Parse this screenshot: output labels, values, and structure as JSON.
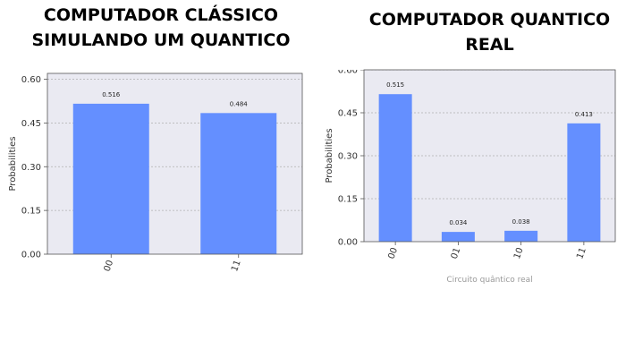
{
  "headings": {
    "left": "COMPUTADOR CLÁSSICO\nSIMULANDO UM QUANTICO",
    "right": "COMPUTADOR QUANTICO\nREAL"
  },
  "colors": {
    "bar": "#648fff",
    "plot_background": "#eaeaf2",
    "grid": "#b0b0b0"
  },
  "chart_data": [
    {
      "type": "bar",
      "title": "COMPUTADOR CLÁSSICO SIMULANDO UM QUANTICO",
      "categories": [
        "00",
        "11"
      ],
      "values": [
        0.516,
        0.484
      ],
      "value_labels": [
        "0.516",
        "0.484"
      ],
      "xlabel": "",
      "ylabel": "Probabilities",
      "ylim": [
        0,
        0.62
      ],
      "yticks": [
        0.0,
        0.15,
        0.3,
        0.45,
        0.6
      ],
      "ytick_labels": [
        "0.00",
        "0.15",
        "0.30",
        "0.45",
        "0.60"
      ],
      "grid": true
    },
    {
      "type": "bar",
      "title": "COMPUTADOR QUANTICO REAL",
      "categories": [
        "00",
        "01",
        "10",
        "11"
      ],
      "values": [
        0.515,
        0.034,
        0.038,
        0.413
      ],
      "value_labels": [
        "0.515",
        "0.034",
        "0.038",
        "0.413"
      ],
      "xlabel": "Circuito quântico real",
      "ylabel": "Probabilities",
      "ylim": [
        0,
        0.6
      ],
      "yticks": [
        0.0,
        0.15,
        0.3,
        0.45,
        0.6
      ],
      "ytick_labels": [
        "0.00",
        "0.15",
        "0.30",
        "0.45",
        "0.60"
      ],
      "grid": true
    }
  ]
}
